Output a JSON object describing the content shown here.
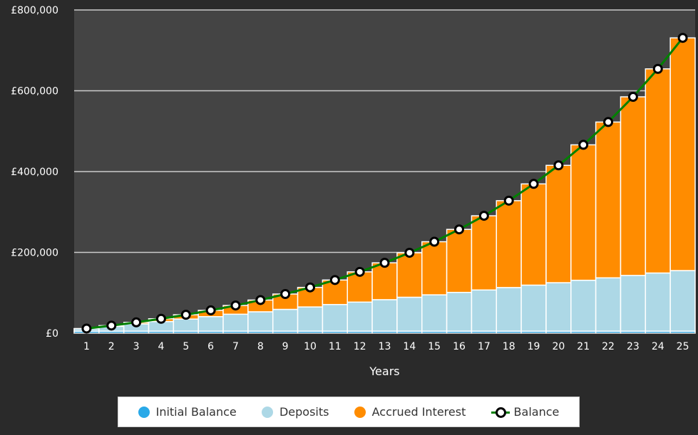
{
  "chart_data": {
    "type": "bar",
    "stacked": true,
    "xlabel": "Years",
    "ylabel": "",
    "ylim": [
      0,
      800000
    ],
    "y_ticks": [
      "£0",
      "£200,000",
      "£400,000",
      "£600,000",
      "£800,000"
    ],
    "y_tick_values": [
      0,
      200000,
      400000,
      600000,
      800000
    ],
    "grid": true,
    "legend_position": "bottom",
    "categories": [
      "1",
      "2",
      "3",
      "4",
      "5",
      "6",
      "7",
      "8",
      "9",
      "10",
      "11",
      "12",
      "13",
      "14",
      "15",
      "16",
      "17",
      "18",
      "19",
      "20",
      "21",
      "22",
      "23",
      "24",
      "25"
    ],
    "series": [
      {
        "name": "Initial Balance",
        "kind": "bar",
        "color": "#29a9e8",
        "values": [
          5000,
          5000,
          5000,
          5000,
          5000,
          5000,
          5000,
          5000,
          5000,
          5000,
          5000,
          5000,
          5000,
          5000,
          5000,
          5000,
          5000,
          5000,
          5000,
          5000,
          5000,
          5000,
          5000,
          5000,
          5000
        ]
      },
      {
        "name": "Deposits",
        "kind": "bar",
        "color": "#add8e6",
        "values": [
          6000,
          12000,
          18000,
          24000,
          30000,
          36000,
          42000,
          48000,
          54000,
          60000,
          66000,
          72000,
          78000,
          84000,
          90000,
          96000,
          102000,
          108000,
          114000,
          120000,
          126000,
          132000,
          138000,
          144000,
          150000
        ]
      },
      {
        "name": "Accrued Interest",
        "kind": "bar",
        "color": "#ff8c00",
        "values": [
          500,
          1800,
          3800,
          6700,
          10600,
          15500,
          21600,
          29000,
          37900,
          48300,
          60600,
          74800,
          91200,
          110000,
          131400,
          155900,
          183600,
          215000,
          250500,
          290400,
          335200,
          385600,
          442000,
          505200,
          575900
        ]
      },
      {
        "name": "Balance",
        "kind": "line",
        "color": "#008000",
        "values": [
          11500,
          18800,
          26800,
          35700,
          45600,
          56500,
          68600,
          82000,
          96900,
          113300,
          131600,
          151800,
          174200,
          199000,
          226400,
          256900,
          290600,
          328000,
          369500,
          415400,
          466200,
          522600,
          585000,
          654200,
          730900
        ]
      }
    ]
  },
  "colors": {
    "plot_background": "#444444",
    "page_background": "#2a2a2a",
    "grid": "#cccccc",
    "text": "#ffffff"
  }
}
